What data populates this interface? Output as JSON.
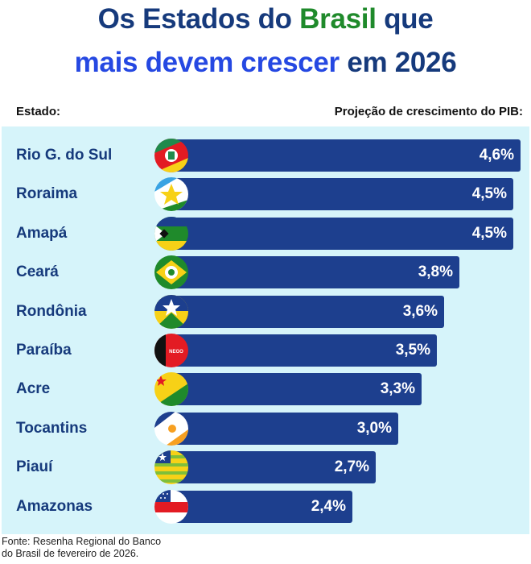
{
  "title": {
    "line1_a": "Os Estados do ",
    "line1_b": "Brasil",
    "line1_c": " que",
    "line2_a": "mais devem crescer",
    "line2_b": " em 2026"
  },
  "colors": {
    "title_dark": "#163a7c",
    "title_green": "#1f8a2b",
    "title_blue": "#2548e2",
    "bar": "#1d3f8e",
    "panel": "#d6f4fa"
  },
  "chart_data": {
    "type": "bar",
    "orientation": "horizontal",
    "xlabel_left": "Estado:",
    "xlabel_right": "Projeção de crescimento do PIB:",
    "categories": [
      "Rio G. do Sul",
      "Roraima",
      "Amapá",
      "Ceará",
      "Rondônia",
      "Paraíba",
      "Acre",
      "Tocantins",
      "Piauí",
      "Amazonas"
    ],
    "values": [
      4.6,
      4.5,
      4.5,
      3.8,
      3.6,
      3.5,
      3.3,
      3.0,
      2.7,
      2.4
    ],
    "value_labels": [
      "4,6%",
      "4,5%",
      "4,5%",
      "3,8%",
      "3,6%",
      "3,5%",
      "3,3%",
      "3,0%",
      "2,7%",
      "2,4%"
    ],
    "flags": [
      "rio-grande-do-sul-flag-icon",
      "roraima-flag-icon",
      "amapa-flag-icon",
      "ceara-flag-icon",
      "rondonia-flag-icon",
      "paraiba-flag-icon",
      "acre-flag-icon",
      "tocantins-flag-icon",
      "piaui-flag-icon",
      "amazonas-flag-icon"
    ],
    "paraiba_flag_text": "NEGO"
  },
  "source": {
    "line1": "Fonte: Resenha Regional do Banco",
    "line2": "do Brasil de fevereiro de 2026."
  }
}
